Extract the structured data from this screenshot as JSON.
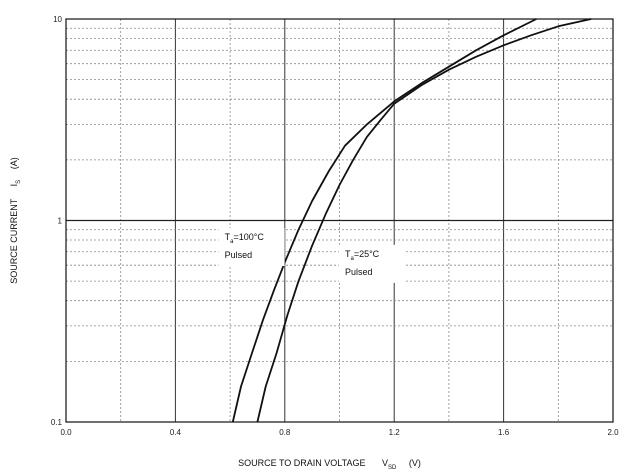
{
  "chart_data": {
    "type": "line",
    "title": "",
    "xlabel": "SOURCE TO DRAIN VOLTAGE",
    "xlabel_symbol": "V",
    "xlabel_subscript": "SD",
    "xlabel_unit": "(V)",
    "ylabel": "SOURCE CURRENT",
    "ylabel_symbol": "I",
    "ylabel_subscript": "S",
    "ylabel_unit": "(A)",
    "xlim": [
      0.0,
      2.0
    ],
    "ylim": [
      0.1,
      10
    ],
    "yscale": "log",
    "grid": true,
    "x_ticks": [
      "0.0",
      "0.4",
      "0.8",
      "1.2",
      "1.6",
      "2.0"
    ],
    "y_ticks": [
      "0.1",
      "1",
      "10"
    ],
    "series": [
      {
        "x": [
          0.61,
          0.64,
          0.68,
          0.72,
          0.76,
          0.8,
          0.85,
          0.9,
          0.96,
          1.02,
          1.1,
          1.2,
          1.3,
          1.4,
          1.5,
          1.6,
          1.72
        ],
        "y": [
          0.1,
          0.15,
          0.22,
          0.32,
          0.45,
          0.62,
          0.9,
          1.25,
          1.75,
          2.35,
          3.0,
          3.9,
          4.8,
          5.8,
          7.0,
          8.3,
          10.0
        ]
      },
      {
        "x": [
          0.7,
          0.73,
          0.77,
          0.81,
          0.85,
          0.9,
          0.95,
          1.0,
          1.05,
          1.1,
          1.15,
          1.2,
          1.3,
          1.4,
          1.5,
          1.6,
          1.7,
          1.8,
          1.92
        ],
        "y": [
          0.1,
          0.15,
          0.22,
          0.34,
          0.5,
          0.75,
          1.08,
          1.5,
          2.0,
          2.6,
          3.15,
          3.8,
          4.7,
          5.6,
          6.5,
          7.4,
          8.3,
          9.2,
          10.0
        ]
      }
    ],
    "annotations": [
      {
        "symbol": "T",
        "subscript": "a",
        "text": "=100°C",
        "line2": "Pulsed",
        "x": 0.58,
        "y": 0.8
      },
      {
        "symbol": "T",
        "subscript": "a",
        "text": "=25°C",
        "line2": "Pulsed",
        "x": 1.02,
        "y": 0.66
      }
    ]
  }
}
